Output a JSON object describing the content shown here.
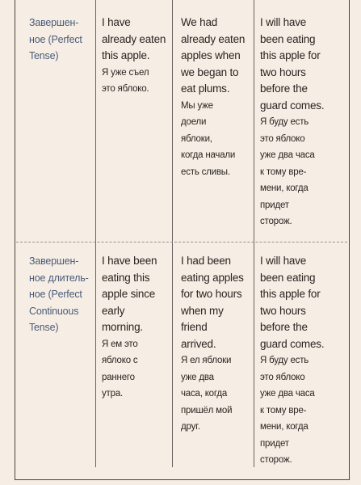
{
  "rows": [
    {
      "tense": "Завершен-\nное (Perfect\nTense)",
      "col1_en": "I have\nalready eaten\nthis apple.",
      "col1_ru": "Я уже съел\nэто яблоко.",
      "col2_en": "We had\nalready eaten\napples when\nwe began to\neat plums.",
      "col2_ru": "Мы уже\nдоели\nяблоки,\nкогда начали\nесть сливы.",
      "col3_en": "I will have\nbeen eating\nthis apple for\ntwo hours\nbefore the\nguard comes.",
      "col3_ru": "Я буду есть\nэто яблоко\nуже два часа\nк тому вре-\nмени, когда\nпридет\nсторож."
    },
    {
      "tense": "Завершен-\nное длитель-\nное (Perfect\nContinuous\nTense)",
      "col1_en": "I have been\neating this\napple since\nearly\nmorning.",
      "col1_ru": "Я ем это\nяблоко с\nраннего\nутра.",
      "col2_en": "I had been\neating apples\nfor two hours\nwhen my\nfriend\narrived.",
      "col2_ru": "Я ел яблоки\nуже два\nчаса, когда\nпришёл мой\nдруг.",
      "col3_en": "I will have\nbeen eating\nthis apple for\ntwo hours\nbefore the\nguard comes.",
      "col3_ru": "Я буду есть\nэто яблоко\nуже два часа\nк тому вре-\nмени, когда\nпридет\nсторож."
    }
  ]
}
